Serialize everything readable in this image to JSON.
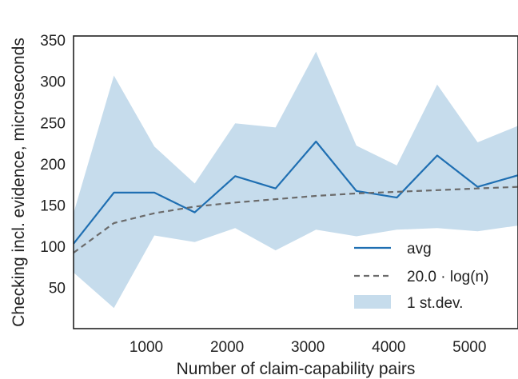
{
  "chart_data": {
    "type": "line",
    "title": "",
    "xlabel": "Number of claim-capability pairs",
    "ylabel": "Checking incl. evidence, microseconds",
    "xlim": [
      100,
      5600
    ],
    "ylim": [
      0,
      355
    ],
    "xticks": [
      1000,
      2000,
      3000,
      4000,
      5000
    ],
    "yticks": [
      50,
      100,
      150,
      200,
      250,
      300,
      350
    ],
    "grid": false,
    "legend_position": "lower-right",
    "x": [
      100,
      600,
      1100,
      1600,
      2100,
      2600,
      3100,
      3600,
      4100,
      4600,
      5100,
      5600
    ],
    "series": [
      {
        "name": "avg",
        "style": "solid",
        "color": "#1f6fb2",
        "values": [
          103,
          165,
          165,
          141,
          185,
          170,
          227,
          167,
          159,
          210,
          172,
          186
        ]
      },
      {
        "name": "20.0 · log(n)",
        "style": "dashed",
        "color": "#6b6b6b",
        "values": [
          92,
          128,
          140,
          148,
          153,
          157,
          161,
          164,
          166,
          168,
          170,
          172
        ]
      }
    ],
    "band": {
      "name": "1 st.dev.",
      "color": "#c6dcec",
      "lower": [
        68,
        25,
        113,
        105,
        122,
        95,
        120,
        112,
        120,
        122,
        118,
        125
      ],
      "upper": [
        140,
        307,
        221,
        176,
        249,
        244,
        336,
        222,
        198,
        296,
        226,
        246
      ]
    }
  }
}
